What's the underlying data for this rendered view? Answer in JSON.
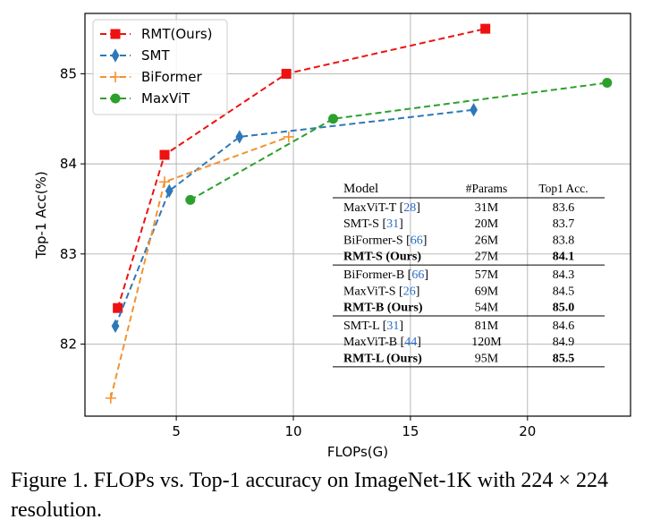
{
  "chart_data": {
    "type": "line",
    "xlabel": "FLOPs(G)",
    "ylabel": "Top-1 Acc(%)",
    "xlim": [
      1.1,
      24.4
    ],
    "ylim": [
      81.2,
      85.67
    ],
    "xticks": [
      5,
      10,
      15,
      20
    ],
    "yticks": [
      82,
      83,
      84,
      85
    ],
    "xtick_labels": [
      "5",
      "10",
      "15",
      "20"
    ],
    "ytick_labels": [
      "82",
      "83",
      "84",
      "85"
    ],
    "grid": true,
    "legend_position": "top-left",
    "series": [
      {
        "name": "RMT(Ours)",
        "color": "#ee1111",
        "marker": "square",
        "x": [
          2.5,
          4.5,
          9.7,
          18.2
        ],
        "y": [
          82.4,
          84.1,
          85.0,
          85.5
        ]
      },
      {
        "name": "SMT",
        "color": "#2e78b8",
        "marker": "diamond",
        "x": [
          2.4,
          4.7,
          7.7,
          17.7
        ],
        "y": [
          82.2,
          83.7,
          84.3,
          84.6
        ]
      },
      {
        "name": "BiFormer",
        "color": "#f5922f",
        "marker": "plus",
        "x": [
          2.2,
          4.5,
          9.8
        ],
        "y": [
          81.4,
          83.8,
          84.3
        ]
      },
      {
        "name": "MaxViT",
        "color": "#2ca02c",
        "marker": "circle",
        "x": [
          5.6,
          11.7,
          23.4
        ],
        "y": [
          83.6,
          84.5,
          84.9
        ]
      }
    ],
    "table": {
      "headers": [
        "Model",
        "#Params",
        "Top1 Acc."
      ],
      "groups": [
        [
          {
            "name": "MaxViT-T",
            "ref": "28",
            "params": "31M",
            "acc": "83.6",
            "bold": false
          },
          {
            "name": "SMT-S",
            "ref": "31",
            "params": "20M",
            "acc": "83.7",
            "bold": false
          },
          {
            "name": "BiFormer-S",
            "ref": "66",
            "params": "26M",
            "acc": "83.8",
            "bold": false
          },
          {
            "name": "RMT-S (Ours)",
            "ref": "",
            "params": "27M",
            "acc": "84.1",
            "bold": true
          }
        ],
        [
          {
            "name": "BiFormer-B",
            "ref": "66",
            "params": "57M",
            "acc": "84.3",
            "bold": false
          },
          {
            "name": "MaxViT-S",
            "ref": "26",
            "params": "69M",
            "acc": "84.5",
            "bold": false
          },
          {
            "name": "RMT-B (Ours)",
            "ref": "",
            "params": "54M",
            "acc": "85.0",
            "bold": true
          }
        ],
        [
          {
            "name": "SMT-L",
            "ref": "31",
            "params": "81M",
            "acc": "84.6",
            "bold": false
          },
          {
            "name": "MaxViT-B",
            "ref": "44",
            "params": "120M",
            "acc": "84.9",
            "bold": false
          },
          {
            "name": "RMT-L (Ours)",
            "ref": "",
            "params": "95M",
            "acc": "85.5",
            "bold": true
          }
        ]
      ]
    }
  },
  "caption": "Figure 1. FLOPs vs. Top-1 accuracy on ImageNet-1K with 224 × 224 resolution."
}
